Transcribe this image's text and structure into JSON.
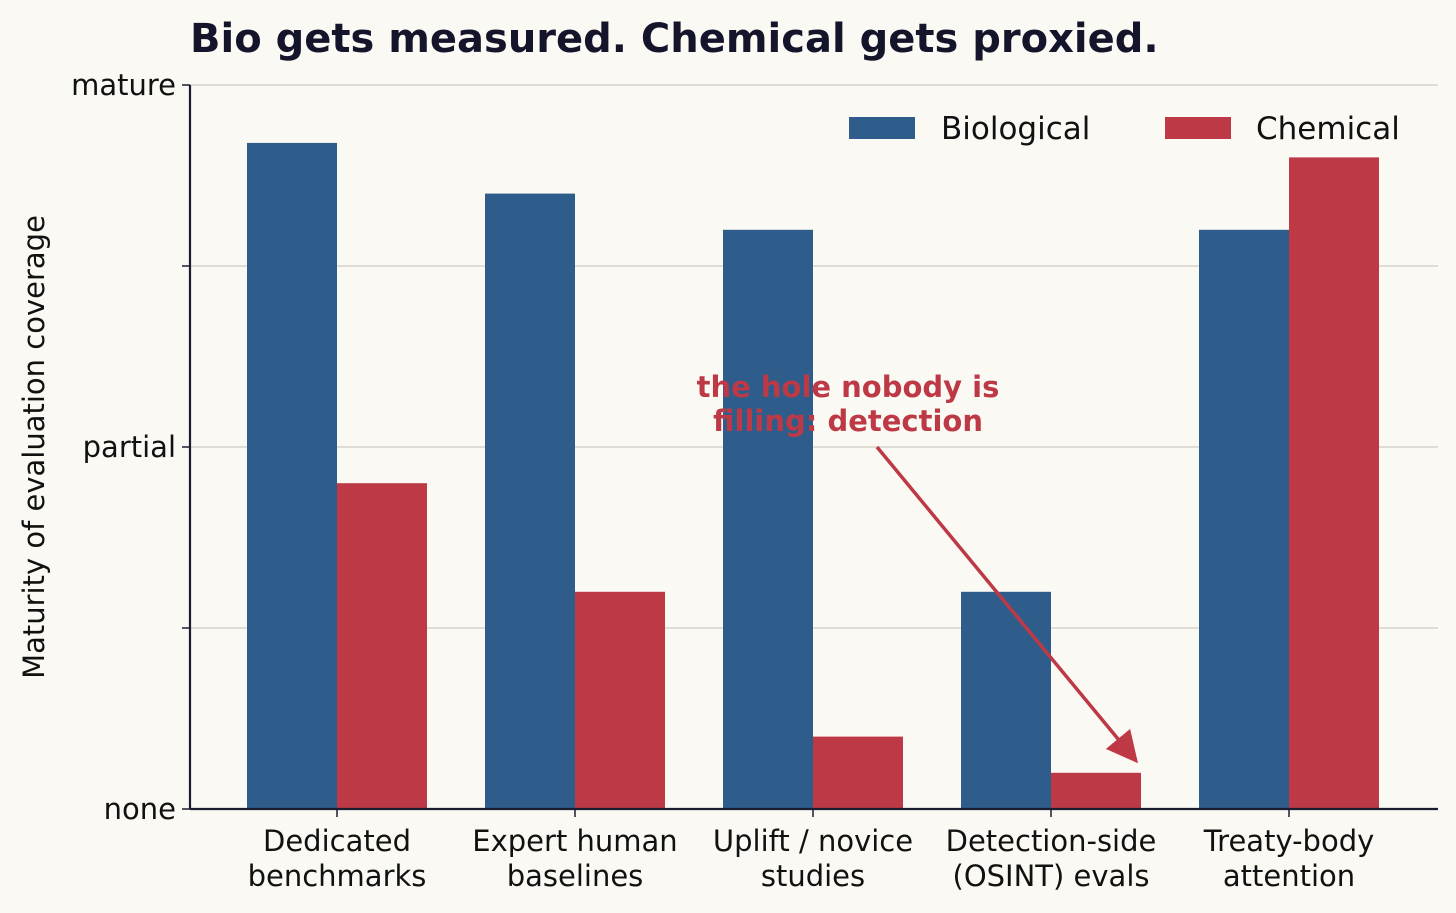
{
  "chart_data": {
    "type": "bar",
    "title": "Bio gets measured. Chemical gets proxied.",
    "ylabel": "Maturity of evaluation coverage",
    "xlabel": "",
    "ylim": [
      0,
      1
    ],
    "yticks": [
      {
        "value": 0,
        "label": "none"
      },
      {
        "value": 0.25,
        "label": ""
      },
      {
        "value": 0.5,
        "label": "partial"
      },
      {
        "value": 0.75,
        "label": ""
      },
      {
        "value": 1,
        "label": "mature"
      }
    ],
    "grid": true,
    "legend_position": "top-right",
    "categories": [
      [
        "Dedicated",
        "benchmarks"
      ],
      [
        "Expert human",
        "baselines"
      ],
      [
        "Uplift / novice",
        "studies"
      ],
      [
        "Detection-side",
        "(OSINT) evals"
      ],
      [
        "Treaty-body",
        "attention"
      ]
    ],
    "series": [
      {
        "name": "Biological",
        "color": "#2e5d8b",
        "values": [
          0.92,
          0.85,
          0.8,
          0.3,
          0.8
        ]
      },
      {
        "name": "Chemical",
        "color": "#bd3946",
        "values": [
          0.45,
          0.3,
          0.1,
          0.05,
          0.9
        ]
      }
    ],
    "annotation": {
      "lines": [
        "the hole nobody is",
        "filling: detection"
      ],
      "color": "#bd3946",
      "target_category": 3,
      "target_series": 1
    }
  }
}
